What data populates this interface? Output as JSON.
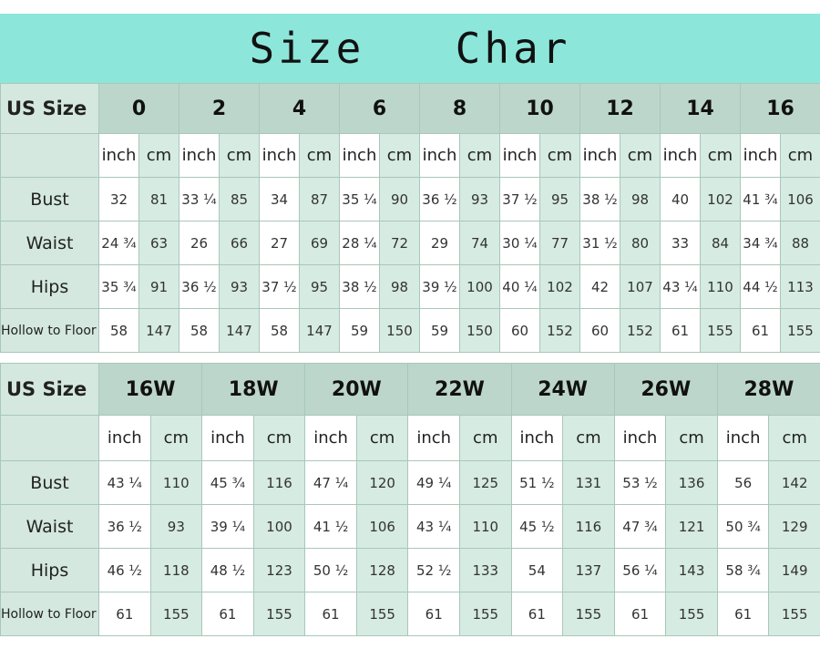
{
  "title": "Size  Char",
  "colors": {
    "banner": "#8de6da",
    "header": "#bcd6cb",
    "cm_column": "#d6ebe2",
    "inch_column": "#ffffff"
  },
  "tables": [
    {
      "size_label": "US Size",
      "sizes": [
        "0",
        "2",
        "4",
        "6",
        "8",
        "10",
        "12",
        "14",
        "16"
      ],
      "units": [
        "inch",
        "cm"
      ],
      "rows": [
        {
          "label": "Bust",
          "values": [
            "32",
            "81",
            "33 ¼",
            "85",
            "34",
            "87",
            "35 ¼",
            "90",
            "36 ½",
            "93",
            "37 ½",
            "95",
            "38 ½",
            "98",
            "40",
            "102",
            "41 ¾",
            "106"
          ]
        },
        {
          "label": "Waist",
          "values": [
            "24 ¾",
            "63",
            "26",
            "66",
            "27",
            "69",
            "28 ¼",
            "72",
            "29",
            "74",
            "30 ¼",
            "77",
            "31 ½",
            "80",
            "33",
            "84",
            "34 ¾",
            "88"
          ]
        },
        {
          "label": "Hips",
          "values": [
            "35 ¾",
            "91",
            "36 ½",
            "93",
            "37 ½",
            "95",
            "38 ½",
            "98",
            "39 ½",
            "100",
            "40 ¼",
            "102",
            "42",
            "107",
            "43 ¼",
            "110",
            "44 ½",
            "113"
          ]
        },
        {
          "label": "Hollow to Floor",
          "values": [
            "58",
            "147",
            "58",
            "147",
            "58",
            "147",
            "59",
            "150",
            "59",
            "150",
            "60",
            "152",
            "60",
            "152",
            "61",
            "155",
            "61",
            "155"
          ]
        }
      ]
    },
    {
      "size_label": "US Size",
      "sizes": [
        "16W",
        "18W",
        "20W",
        "22W",
        "24W",
        "26W",
        "28W"
      ],
      "units": [
        "inch",
        "cm"
      ],
      "rows": [
        {
          "label": "Bust",
          "values": [
            "43 ¼",
            "110",
            "45 ¾",
            "116",
            "47 ¼",
            "120",
            "49 ¼",
            "125",
            "51 ½",
            "131",
            "53 ½",
            "136",
            "56",
            "142"
          ]
        },
        {
          "label": "Waist",
          "values": [
            "36 ½",
            "93",
            "39 ¼",
            "100",
            "41 ½",
            "106",
            "43 ¼",
            "110",
            "45 ½",
            "116",
            "47 ¾",
            "121",
            "50 ¾",
            "129"
          ]
        },
        {
          "label": "Hips",
          "values": [
            "46 ½",
            "118",
            "48 ½",
            "123",
            "50 ½",
            "128",
            "52 ½",
            "133",
            "54",
            "137",
            "56 ¼",
            "143",
            "58 ¾",
            "149"
          ]
        },
        {
          "label": "Hollow to Floor",
          "values": [
            "61",
            "155",
            "61",
            "155",
            "61",
            "155",
            "61",
            "155",
            "61",
            "155",
            "61",
            "155",
            "61",
            "155"
          ]
        }
      ]
    }
  ]
}
